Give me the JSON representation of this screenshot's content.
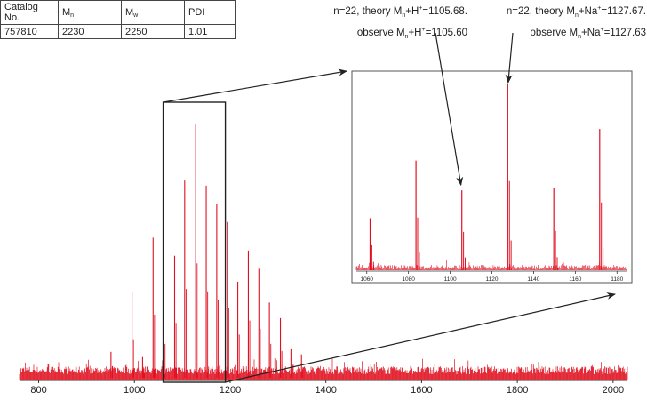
{
  "table": {
    "headers": {
      "catalog": "Catalog No.",
      "mn_letter": "M",
      "mn_sub": "n",
      "mw_letter": "M",
      "mw_sub": "w",
      "pdi": "PDI"
    },
    "row": {
      "catalog": "757810",
      "mn": "2230",
      "mw": "2250",
      "pdi": "1.01"
    }
  },
  "annotations": [
    {
      "line1_a": "n=22, theory M",
      "line1_sub": "n",
      "line1_b": "+H",
      "line1_sup": "+",
      "line1_c": "=1105.68.",
      "line2_a": "observe M",
      "line2_sub": "n",
      "line2_b": "+H",
      "line2_sup": "+",
      "line2_c": "=1105.60"
    },
    {
      "line1_a": "n=22, theory M",
      "line1_sub": "n",
      "line1_b": "+Na",
      "line1_sup": "+",
      "line1_c": "=1127.67.",
      "line2_a": "observe M",
      "line2_sub": "n",
      "line2_b": "+Na",
      "line2_sup": "+",
      "line2_c": "=1127.63"
    }
  ],
  "colors": {
    "spectrum": "#e01020",
    "axis": "#333333",
    "box": "#222222"
  },
  "chart_data": [
    {
      "type": "line",
      "title": "",
      "xlabel": "",
      "ylabel": "",
      "xlim": [
        760,
        2030
      ],
      "ylim": [
        0,
        1
      ],
      "x_ticks": [
        800,
        1000,
        1200,
        1400,
        1600,
        1800,
        2000
      ],
      "series": [
        {
          "peaks_x": [
            951,
            995,
            1017,
            1039,
            1061,
            1084,
            1105,
            1128,
            1150,
            1172,
            1194,
            1216,
            1238,
            1260,
            1282,
            1305,
            1327,
            1349
          ],
          "peaks_y": [
            0.1,
            0.33,
            0.08,
            0.54,
            0.29,
            0.47,
            0.76,
            0.98,
            0.74,
            0.67,
            0.6,
            0.37,
            0.49,
            0.42,
            0.29,
            0.23,
            0.11,
            0.09
          ]
        }
      ],
      "zoom_region": [
        1060,
        1190
      ]
    },
    {
      "type": "line",
      "title": "",
      "xlabel": "",
      "ylabel": "",
      "xlim": [
        1055,
        1185
      ],
      "ylim": [
        0,
        1
      ],
      "x_ticks": [
        1060,
        1080,
        1100,
        1120,
        1140,
        1160,
        1180
      ],
      "series": [
        {
          "peaks_x": [
            1061.6,
            1083.6,
            1105.6,
            1127.6,
            1149.7,
            1171.7
          ],
          "peaks_y": [
            0.28,
            0.59,
            0.43,
            1.0,
            0.44,
            0.76
          ]
        }
      ]
    }
  ]
}
